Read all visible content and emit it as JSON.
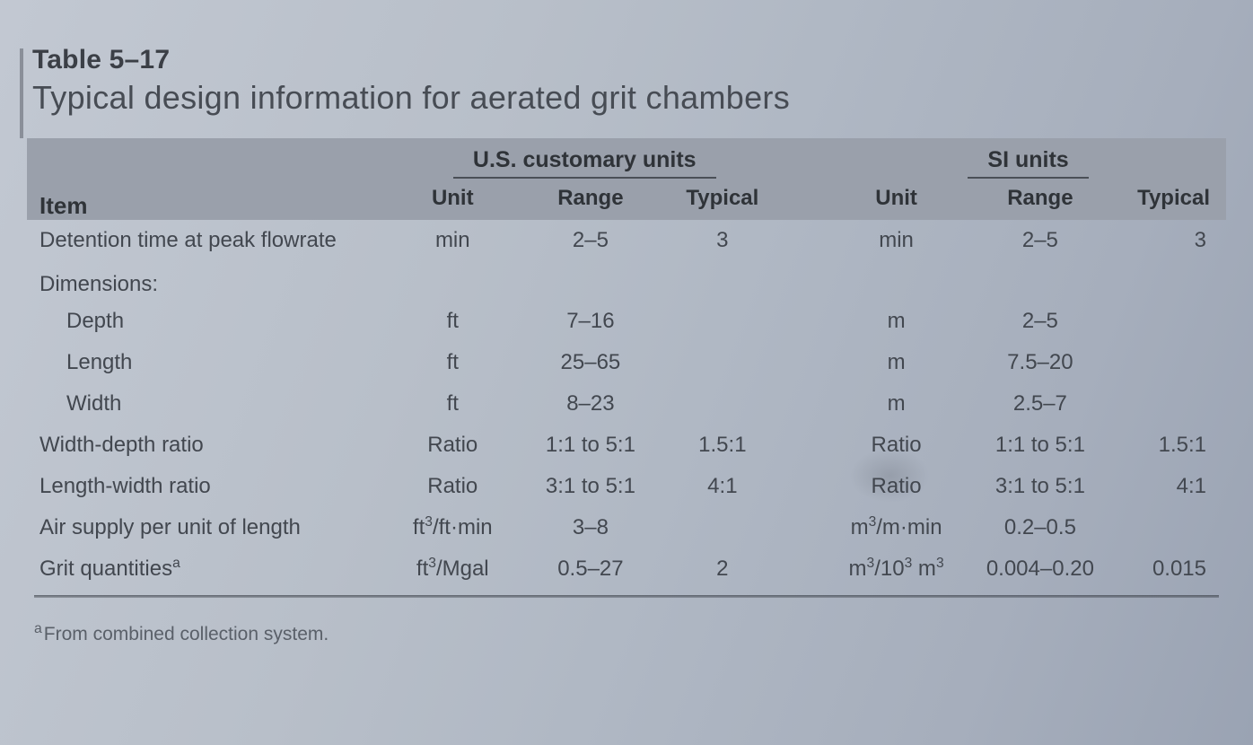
{
  "table": {
    "number": "Table 5–17",
    "caption": "Typical design information for aerated grit chambers",
    "group_headers": {
      "us": "U.S. customary units",
      "si": "SI units"
    },
    "column_headers": {
      "item": "Item",
      "unit": "Unit",
      "range": "Range",
      "typical": "Typical"
    },
    "section_label": "Dimensions:",
    "rows": [
      {
        "item": "Detention time at peak flowrate",
        "indent": false,
        "us_unit": "min",
        "us_range": "2–5",
        "us_typical": "3",
        "si_unit": "min",
        "si_range": "2–5",
        "si_typical": "3"
      },
      {
        "item": "Depth",
        "indent": true,
        "us_unit": "ft",
        "us_range": "7–16",
        "us_typical": "",
        "si_unit": "m",
        "si_range": "2–5",
        "si_typical": ""
      },
      {
        "item": "Length",
        "indent": true,
        "us_unit": "ft",
        "us_range": "25–65",
        "us_typical": "",
        "si_unit": "m",
        "si_range": "7.5–20",
        "si_typical": ""
      },
      {
        "item": "Width",
        "indent": true,
        "us_unit": "ft",
        "us_range": "8–23",
        "us_typical": "",
        "si_unit": "m",
        "si_range": "2.5–7",
        "si_typical": ""
      },
      {
        "item": "Width-depth ratio",
        "indent": false,
        "us_unit": "Ratio",
        "us_range": "1:1 to 5:1",
        "us_typical": "1.5:1",
        "si_unit": "Ratio",
        "si_range": "1:1 to 5:1",
        "si_typical": "1.5:1"
      },
      {
        "item": "Length-width ratio",
        "indent": false,
        "us_unit": "Ratio",
        "us_range": "3:1 to 5:1",
        "us_typical": "4:1",
        "si_unit": "Ratio",
        "si_range": "3:1 to 5:1",
        "si_typical": "4:1"
      },
      {
        "item_html": "Air supply per unit of length",
        "item": "Air supply per unit of length",
        "indent": false,
        "us_unit_html": "ft<sup>3</sup>/ft·min",
        "us_range": "3–8",
        "us_typical": "",
        "si_unit_html": "m<sup>3</sup>/m·min",
        "si_range": "0.2–0.5",
        "si_typical": ""
      },
      {
        "item_html": "Grit quantities<sup>a</sup>",
        "item": "Grit quantities",
        "indent": false,
        "us_unit_html": "ft<sup>3</sup>/Mgal",
        "us_range": "0.5–27",
        "us_typical": "2",
        "si_unit_html": "m<sup>3</sup>/10<sup>3</sup> m<sup>3</sup>",
        "si_range": "0.004–0.20",
        "si_typical": "0.015"
      }
    ],
    "footnote": {
      "mark": "a",
      "text": "From combined collection system."
    }
  },
  "style": {
    "page_bg_gradient": [
      "#c2c8d2",
      "#9aa3b3"
    ],
    "header_band_bg": "#9aa0ab",
    "text_color": "#3a3f46",
    "rule_color": "#4a4f57",
    "title_fontsize_pt": 22,
    "caption_fontsize_pt": 27,
    "header_fontsize_pt": 18,
    "body_fontsize_pt": 18,
    "footnote_fontsize_pt": 16,
    "font_family": "Helvetica Neue, Arial, sans-serif",
    "col_widths_pct": [
      30,
      11,
      12,
      10,
      4,
      11,
      13,
      9
    ]
  }
}
